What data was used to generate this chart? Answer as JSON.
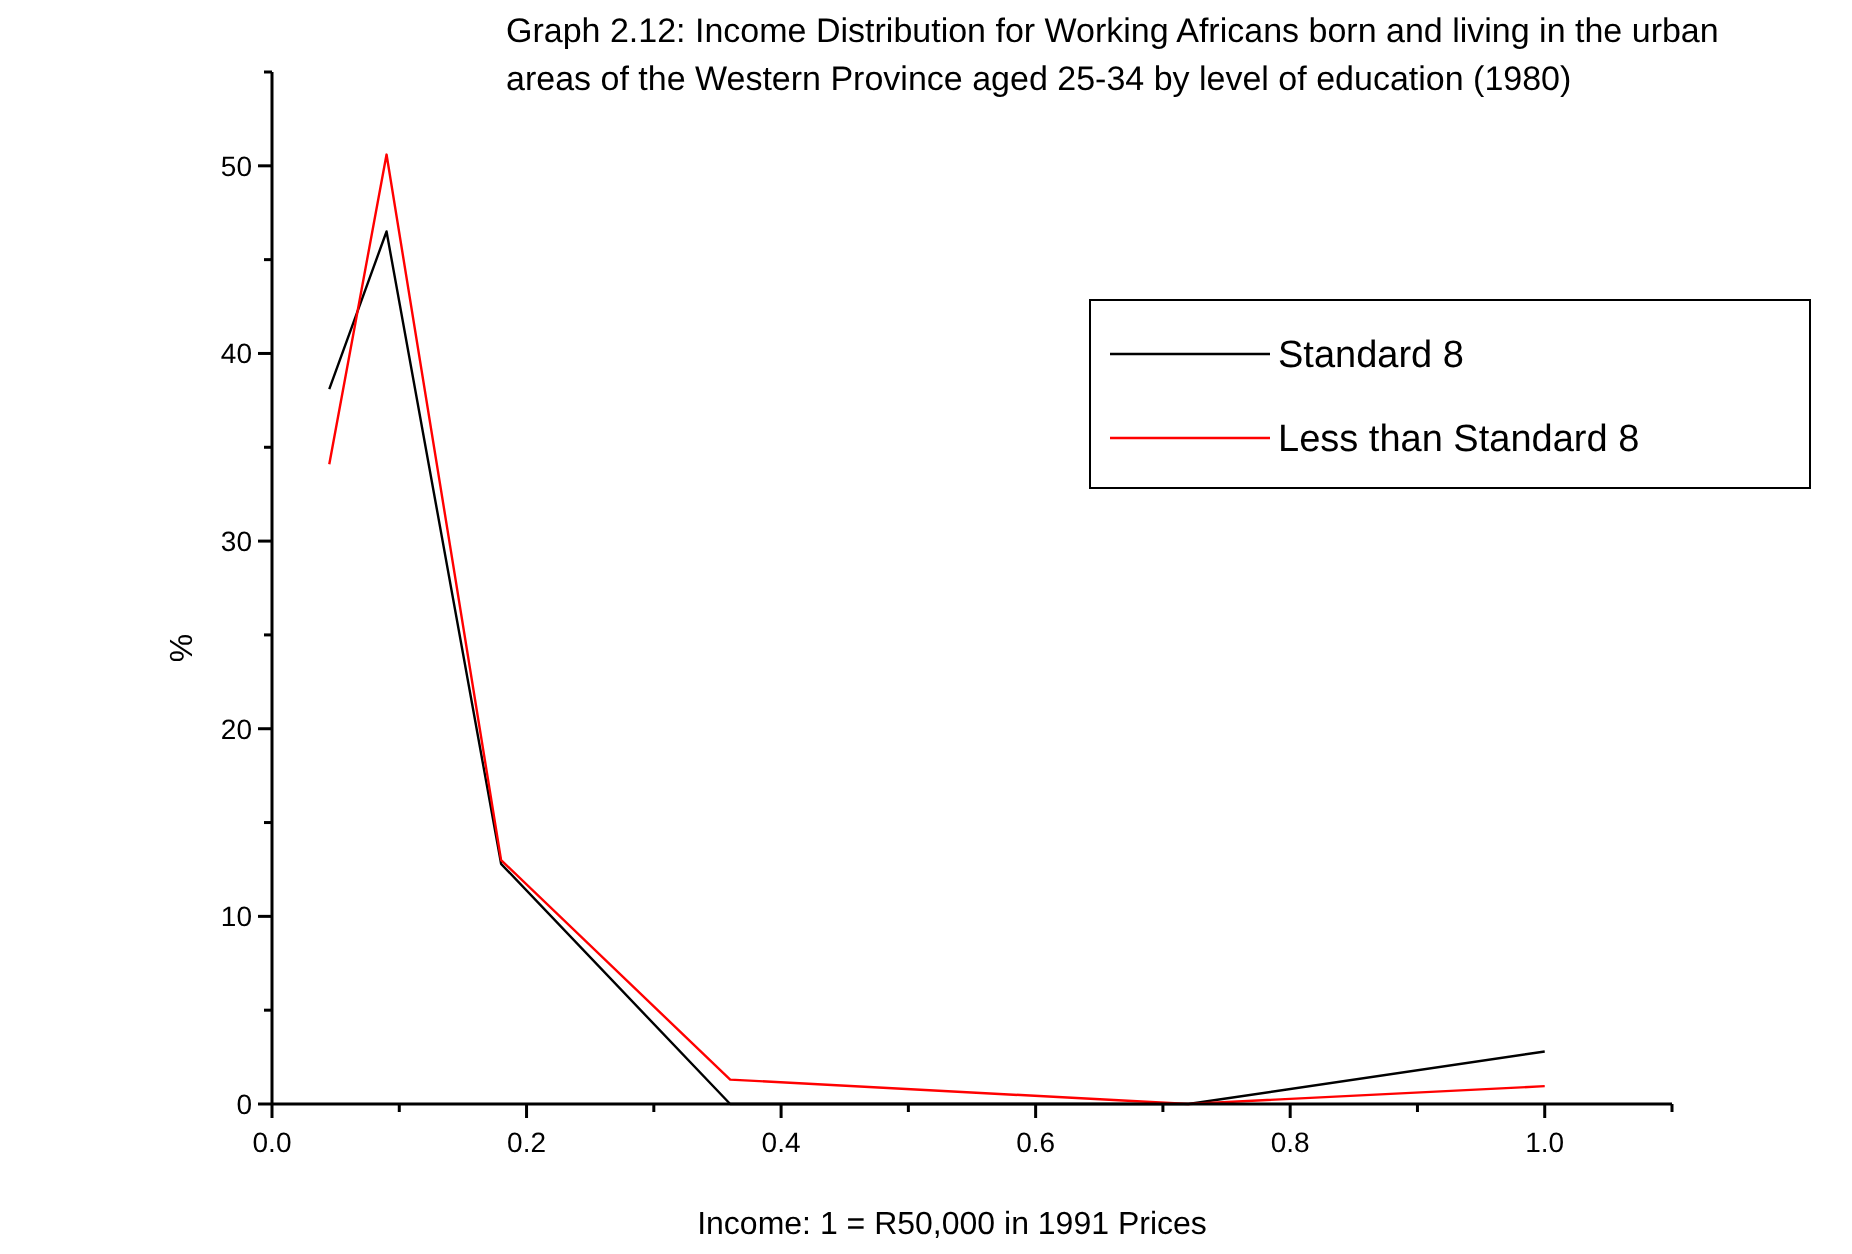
{
  "chart_data": {
    "type": "line",
    "title": "Graph 2.12: Income Distribution for Working Africans born and living in the urban areas of the Western Province aged 25-34 by level of education (1980)",
    "xlabel": "Income: 1 = R50,000 in 1991 Prices",
    "ylabel": "%",
    "x": [
      0.045,
      0.09,
      0.18,
      0.36,
      0.72,
      1.0
    ],
    "series": [
      {
        "name": "Standard 8",
        "color": "#000000",
        "values": [
          38.1,
          46.5,
          12.8,
          0,
          0,
          2.8
        ]
      },
      {
        "name": "Less than Standard 8",
        "color": "#ff0000",
        "values": [
          34.1,
          50.6,
          13.0,
          1.3,
          0,
          0.95
        ]
      }
    ],
    "xlim": [
      0,
      1.1
    ],
    "xticks": [
      {
        "value": 0,
        "label": "0.0"
      },
      {
        "value": 0.1,
        "label": null
      },
      {
        "value": 0.2,
        "label": "0.2"
      },
      {
        "value": 0.3,
        "label": null
      },
      {
        "value": 0.4,
        "label": "0.4"
      },
      {
        "value": 0.5,
        "label": null
      },
      {
        "value": 0.6,
        "label": "0.6"
      },
      {
        "value": 0.7,
        "label": null
      },
      {
        "value": 0.8,
        "label": "0.8"
      },
      {
        "value": 0.9,
        "label": null
      },
      {
        "value": 1,
        "label": "1.0"
      },
      {
        "value": 1.1,
        "label": null
      }
    ],
    "ylim": [
      0,
      55
    ],
    "yticks": [
      0,
      {
        "value": 5,
        "label": null
      },
      10,
      {
        "value": 15,
        "label": null
      },
      20,
      {
        "value": 25,
        "label": null
      },
      30,
      {
        "value": 35,
        "label": null
      },
      40,
      {
        "value": 45,
        "label": null
      },
      50,
      {
        "value": 55,
        "label": null
      }
    ],
    "grid": false,
    "legend": "top right",
    "marker": "none",
    "line_style": "solid"
  }
}
